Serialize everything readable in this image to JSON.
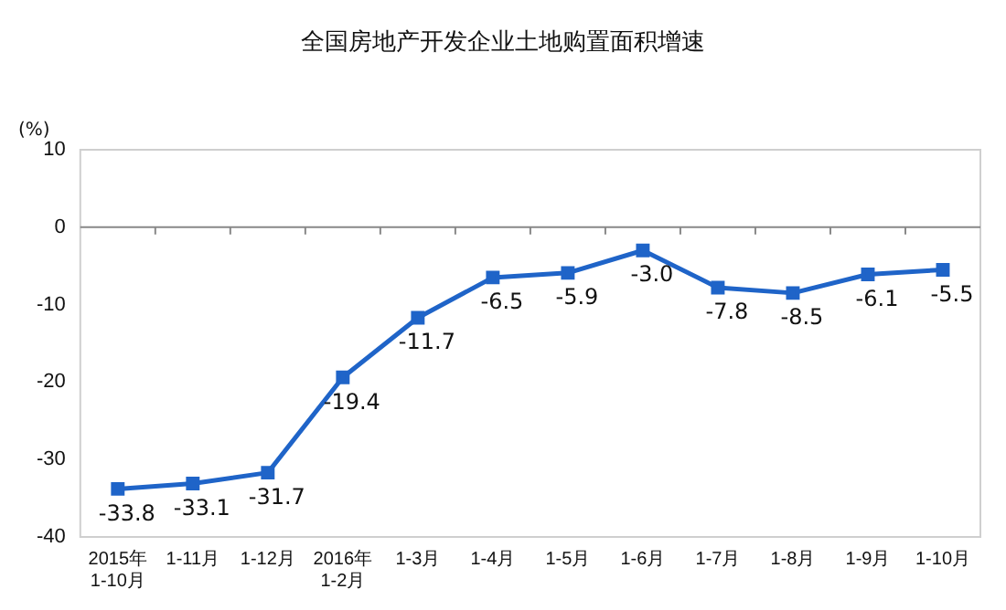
{
  "chart_data": {
    "type": "line",
    "title": "全国房地产开发企业土地购置面积增速",
    "ylabel": "(%)",
    "categories": [
      "2015年\n1-10月",
      "1-11月",
      "1-12月",
      "2016年\n1-2月",
      "1-3月",
      "1-4月",
      "1-5月",
      "1-6月",
      "1-7月",
      "1-8月",
      "1-9月",
      "1-10月"
    ],
    "series": [
      {
        "color": "#1f64c8",
        "values": [
          -33.8,
          -33.1,
          -31.7,
          -19.4,
          -11.7,
          -6.5,
          -5.9,
          -3.0,
          -7.8,
          -8.5,
          -6.1,
          -5.5
        ],
        "value_labels": [
          "-33.8",
          "-33.1",
          "-31.7",
          "-19.4",
          "-11.7",
          "-6.5",
          "-5.9",
          "-3.0",
          "-7.8",
          "-8.5",
          "-6.1",
          "-5.5"
        ]
      }
    ],
    "ylim": [
      -40,
      10
    ],
    "yticks": [
      -40,
      -30,
      -20,
      -10,
      0,
      10
    ],
    "legend": false,
    "marker": "square",
    "line_style": "solid"
  }
}
